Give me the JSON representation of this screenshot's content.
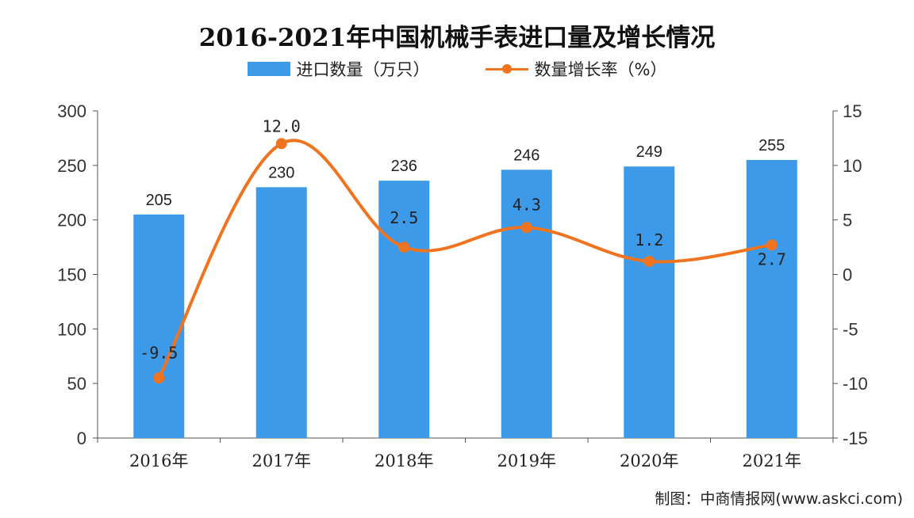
{
  "chart_data": {
    "type": "bar+line",
    "title": "2016-2021年中国机械手表进口量及增长情况",
    "categories": [
      "2016年",
      "2017年",
      "2018年",
      "2019年",
      "2020年",
      "2021年"
    ],
    "series": [
      {
        "name": "进口数量（万只）",
        "type": "bar",
        "axis": "left",
        "values": [
          205,
          230,
          236,
          246,
          249,
          255
        ],
        "color": "#3d9ae8"
      },
      {
        "name": "数量增长率（%）",
        "type": "line",
        "axis": "right",
        "values": [
          -9.5,
          12.0,
          2.5,
          4.3,
          1.2,
          2.7
        ],
        "color": "#f07420"
      }
    ],
    "y_left": {
      "range": [
        0,
        300
      ],
      "ticks": [
        "0",
        "50",
        "100",
        "150",
        "200",
        "250",
        "300"
      ]
    },
    "y_right": {
      "range": [
        -15,
        15
      ],
      "ticks": [
        "-15",
        "-10",
        "-5",
        "0",
        "5",
        "10",
        "15"
      ]
    },
    "legend": "top",
    "grid": false
  },
  "source": "制图：中商情报网(www.askci.com)"
}
